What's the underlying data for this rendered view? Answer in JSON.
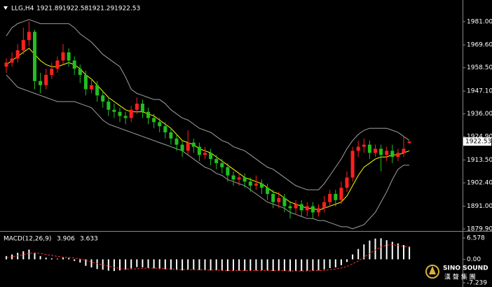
{
  "chart_data": [
    {
      "type": "candlestick",
      "symbol": "LLG,H4",
      "open": [
        1959,
        1961,
        1963,
        1967,
        1972,
        1976,
        1952,
        1950,
        1955,
        1958,
        1962,
        1966,
        1962,
        1958,
        1955,
        1948,
        1950,
        1945,
        1942,
        1938,
        1937,
        1935,
        1934,
        1938,
        1941,
        1937,
        1934,
        1932,
        1930,
        1927,
        1924,
        1921,
        1918,
        1922,
        1920,
        1916,
        1917,
        1914,
        1912,
        1910,
        1906,
        1904,
        1905,
        1903,
        1901,
        1902,
        1900,
        1897,
        1893,
        1895,
        1891,
        1890,
        1892,
        1889,
        1891,
        1888,
        1890,
        1893,
        1897,
        1894,
        1900,
        1905,
        1918,
        1920,
        1921,
        1917,
        1919,
        1916,
        1918,
        1915,
        1917,
        1921.89
      ],
      "high": [
        1963,
        1966,
        1970,
        1978,
        1981,
        1977,
        1956,
        1958,
        1961,
        1964,
        1970,
        1968,
        1964,
        1960,
        1957,
        1953,
        1952,
        1947,
        1944,
        1941,
        1939,
        1937,
        1940,
        1944,
        1943,
        1939,
        1936,
        1934,
        1932,
        1929,
        1926,
        1923,
        1928,
        1924,
        1922,
        1920,
        1919,
        1916,
        1914,
        1912,
        1908,
        1907,
        1907,
        1905,
        1906,
        1904,
        1902,
        1899,
        1898,
        1897,
        1893,
        1894,
        1894,
        1893,
        1893,
        1892,
        1896,
        1899,
        1899,
        1903,
        1908,
        1920,
        1923,
        1924,
        1923,
        1921,
        1921,
        1920,
        1921,
        1919,
        1925,
        1922.58
      ],
      "low": [
        1956,
        1959,
        1961,
        1965,
        1969,
        1948,
        1946,
        1948,
        1953,
        1956,
        1960,
        1959,
        1955,
        1951,
        1945,
        1946,
        1942,
        1939,
        1935,
        1934,
        1932,
        1931,
        1932,
        1936,
        1934,
        1931,
        1929,
        1927,
        1924,
        1921,
        1918,
        1915,
        1916,
        1917,
        1913,
        1914,
        1911,
        1909,
        1907,
        1903,
        1901,
        1901,
        1900,
        1898,
        1899,
        1897,
        1894,
        1890,
        1890,
        1888,
        1885,
        1887,
        1886,
        1886,
        1885,
        1886,
        1888,
        1891,
        1891,
        1892,
        1898,
        1903,
        1915,
        1917,
        1914,
        1915,
        1908,
        1913,
        1912,
        1913,
        1915,
        1921.29
      ],
      "close": [
        1961,
        1963,
        1967,
        1972,
        1976,
        1952,
        1950,
        1955,
        1958,
        1962,
        1966,
        1962,
        1958,
        1955,
        1948,
        1950,
        1945,
        1942,
        1938,
        1937,
        1935,
        1934,
        1938,
        1941,
        1937,
        1934,
        1932,
        1930,
        1927,
        1924,
        1921,
        1918,
        1922,
        1920,
        1916,
        1917,
        1914,
        1912,
        1910,
        1906,
        1904,
        1905,
        1903,
        1901,
        1902,
        1900,
        1897,
        1893,
        1895,
        1891,
        1890,
        1892,
        1889,
        1891,
        1888,
        1890,
        1893,
        1897,
        1894,
        1900,
        1905,
        1918,
        1920,
        1921,
        1917,
        1919,
        1916,
        1918,
        1915,
        1917,
        1919,
        1922.53
      ],
      "up_color": "#ff2020",
      "down_color": "#20c020",
      "bands": [
        {
          "color": "#a0a0a0",
          "values": [
            1974,
            1978,
            1980,
            1981,
            1982,
            1981,
            1980,
            1980,
            1980,
            1980,
            1980,
            1980,
            1978,
            1975,
            1973,
            1971,
            1968,
            1965,
            1963,
            1961,
            1959,
            1954,
            1948,
            1946,
            1945,
            1944,
            1943,
            1943,
            1941,
            1938,
            1936,
            1934,
            1933,
            1931,
            1929,
            1928,
            1927,
            1925,
            1923,
            1922,
            1920,
            1919,
            1918,
            1916,
            1914,
            1912,
            1910,
            1909,
            1907,
            1905,
            1903,
            1901,
            1900,
            1899,
            1899,
            1899,
            1902,
            1906,
            1910,
            1914,
            1919,
            1923,
            1926,
            1928,
            1929,
            1929,
            1929,
            1929,
            1928,
            1927,
            1925,
            1923
          ]
        },
        {
          "color": "#a0a0a0",
          "values": [
            1955,
            1952,
            1949,
            1948,
            1947,
            1946,
            1945,
            1944,
            1943,
            1942,
            1942,
            1942,
            1942,
            1941,
            1940,
            1939,
            1936,
            1933,
            1931,
            1930,
            1929,
            1928,
            1927,
            1926,
            1925,
            1924,
            1923,
            1922,
            1921,
            1920,
            1919,
            1918,
            1916,
            1914,
            1912,
            1910,
            1909,
            1907,
            1906,
            1904,
            1903,
            1902,
            1901,
            1899,
            1897,
            1895,
            1893,
            1892,
            1891,
            1890,
            1888,
            1887,
            1886,
            1885,
            1885,
            1884,
            1884,
            1883,
            1882,
            1881,
            1881,
            1880,
            1881,
            1882,
            1885,
            1888,
            1893,
            1898,
            1904,
            1909,
            1911,
            1911
          ]
        },
        {
          "color": "#ffff00",
          "values": [
            1960,
            1962,
            1964,
            1966,
            1968,
            1965,
            1962,
            1960,
            1959,
            1959,
            1960,
            1961,
            1960,
            1958,
            1955,
            1953,
            1950,
            1947,
            1944,
            1942,
            1940,
            1938,
            1937,
            1937,
            1937,
            1936,
            1935,
            1933,
            1931,
            1929,
            1926,
            1923,
            1922,
            1921,
            1919,
            1918,
            1917,
            1915,
            1913,
            1911,
            1909,
            1907,
            1905,
            1904,
            1903,
            1902,
            1900,
            1898,
            1897,
            1895,
            1893,
            1892,
            1891,
            1890,
            1890,
            1889,
            1890,
            1891,
            1892,
            1893,
            1896,
            1901,
            1906,
            1910,
            1912,
            1914,
            1915,
            1915,
            1916,
            1916,
            1917,
            1918
          ]
        }
      ],
      "ylim": [
        1879.6,
        1989.8
      ],
      "yticks": [
        {
          "value": 1981,
          "label": "1981.00"
        },
        {
          "value": 1969.6,
          "label": "1969.60"
        },
        {
          "value": 1958.5,
          "label": "1958.50"
        },
        {
          "value": 1947.1,
          "label": "1947.10"
        },
        {
          "value": 1936,
          "label": "1936.00"
        },
        {
          "value": 1924.9,
          "label": "1924.90"
        },
        {
          "value": 1913.5,
          "label": "1913.50"
        },
        {
          "value": 1902.4,
          "label": "1902.40"
        },
        {
          "value": 1891,
          "label": "1891.00"
        },
        {
          "value": 1879.9,
          "label": "1879.90"
        }
      ]
    },
    {
      "type": "macd",
      "title": "MACD(12,26,9)",
      "histogram": {
        "color": "#ffffff",
        "values": [
          1,
          1.5,
          2,
          2.5,
          3,
          2,
          1,
          0.5,
          0.3,
          0.2,
          0.5,
          0.4,
          -0.5,
          -1,
          -2,
          -2.5,
          -3,
          -3.2,
          -3.5,
          -3.6,
          -3.4,
          -3.2,
          -2.8,
          -2.4,
          -2.5,
          -2.6,
          -2.8,
          -3,
          -3.1,
          -3.2,
          -3.3,
          -3.4,
          -3.2,
          -3.2,
          -3.3,
          -3.3,
          -3.4,
          -3.4,
          -3.5,
          -3.6,
          -3.6,
          -3.5,
          -3.5,
          -3.5,
          -3.4,
          -3.4,
          -3.5,
          -3.6,
          -3.5,
          -3.6,
          -3.7,
          -3.6,
          -3.6,
          -3.5,
          -3.5,
          -3.4,
          -3.1,
          -2.7,
          -2.5,
          -1.8,
          -0.8,
          1.5,
          3.2,
          4.6,
          5.8,
          6.4,
          6.5,
          5.9,
          5.4,
          4.9,
          4.4,
          3.906
        ]
      },
      "signal": {
        "color": "#ff3030",
        "values": [
          0.5,
          0.8,
          1.1,
          1.4,
          1.8,
          2,
          1.8,
          1.5,
          1.2,
          0.9,
          0.7,
          0.6,
          0.4,
          0.1,
          -0.3,
          -0.8,
          -1.3,
          -1.7,
          -2.1,
          -2.5,
          -2.8,
          -3,
          -3,
          -2.9,
          -2.8,
          -2.7,
          -2.7,
          -2.8,
          -2.9,
          -3,
          -3.1,
          -3.2,
          -3.2,
          -3.2,
          -3.2,
          -3.3,
          -3.3,
          -3.3,
          -3.4,
          -3.5,
          -3.5,
          -3.5,
          -3.5,
          -3.5,
          -3.5,
          -3.4,
          -3.4,
          -3.5,
          -3.5,
          -3.5,
          -3.6,
          -3.6,
          -3.6,
          -3.6,
          -3.5,
          -3.5,
          -3.4,
          -3.2,
          -3,
          -2.7,
          -2.2,
          -1.4,
          -0.5,
          0.6,
          1.8,
          2.9,
          3.8,
          4.4,
          4.5,
          4.3,
          4,
          3.633
        ]
      },
      "ylim": [
        -7.239,
        6.578
      ],
      "yticks": [
        6.578,
        {
          "value": 0,
          "label": "0.00"
        },
        -7.239
      ]
    }
  ],
  "logo": {
    "name": "SINO SOUND",
    "chinese": "漢 聲 集 團"
  }
}
